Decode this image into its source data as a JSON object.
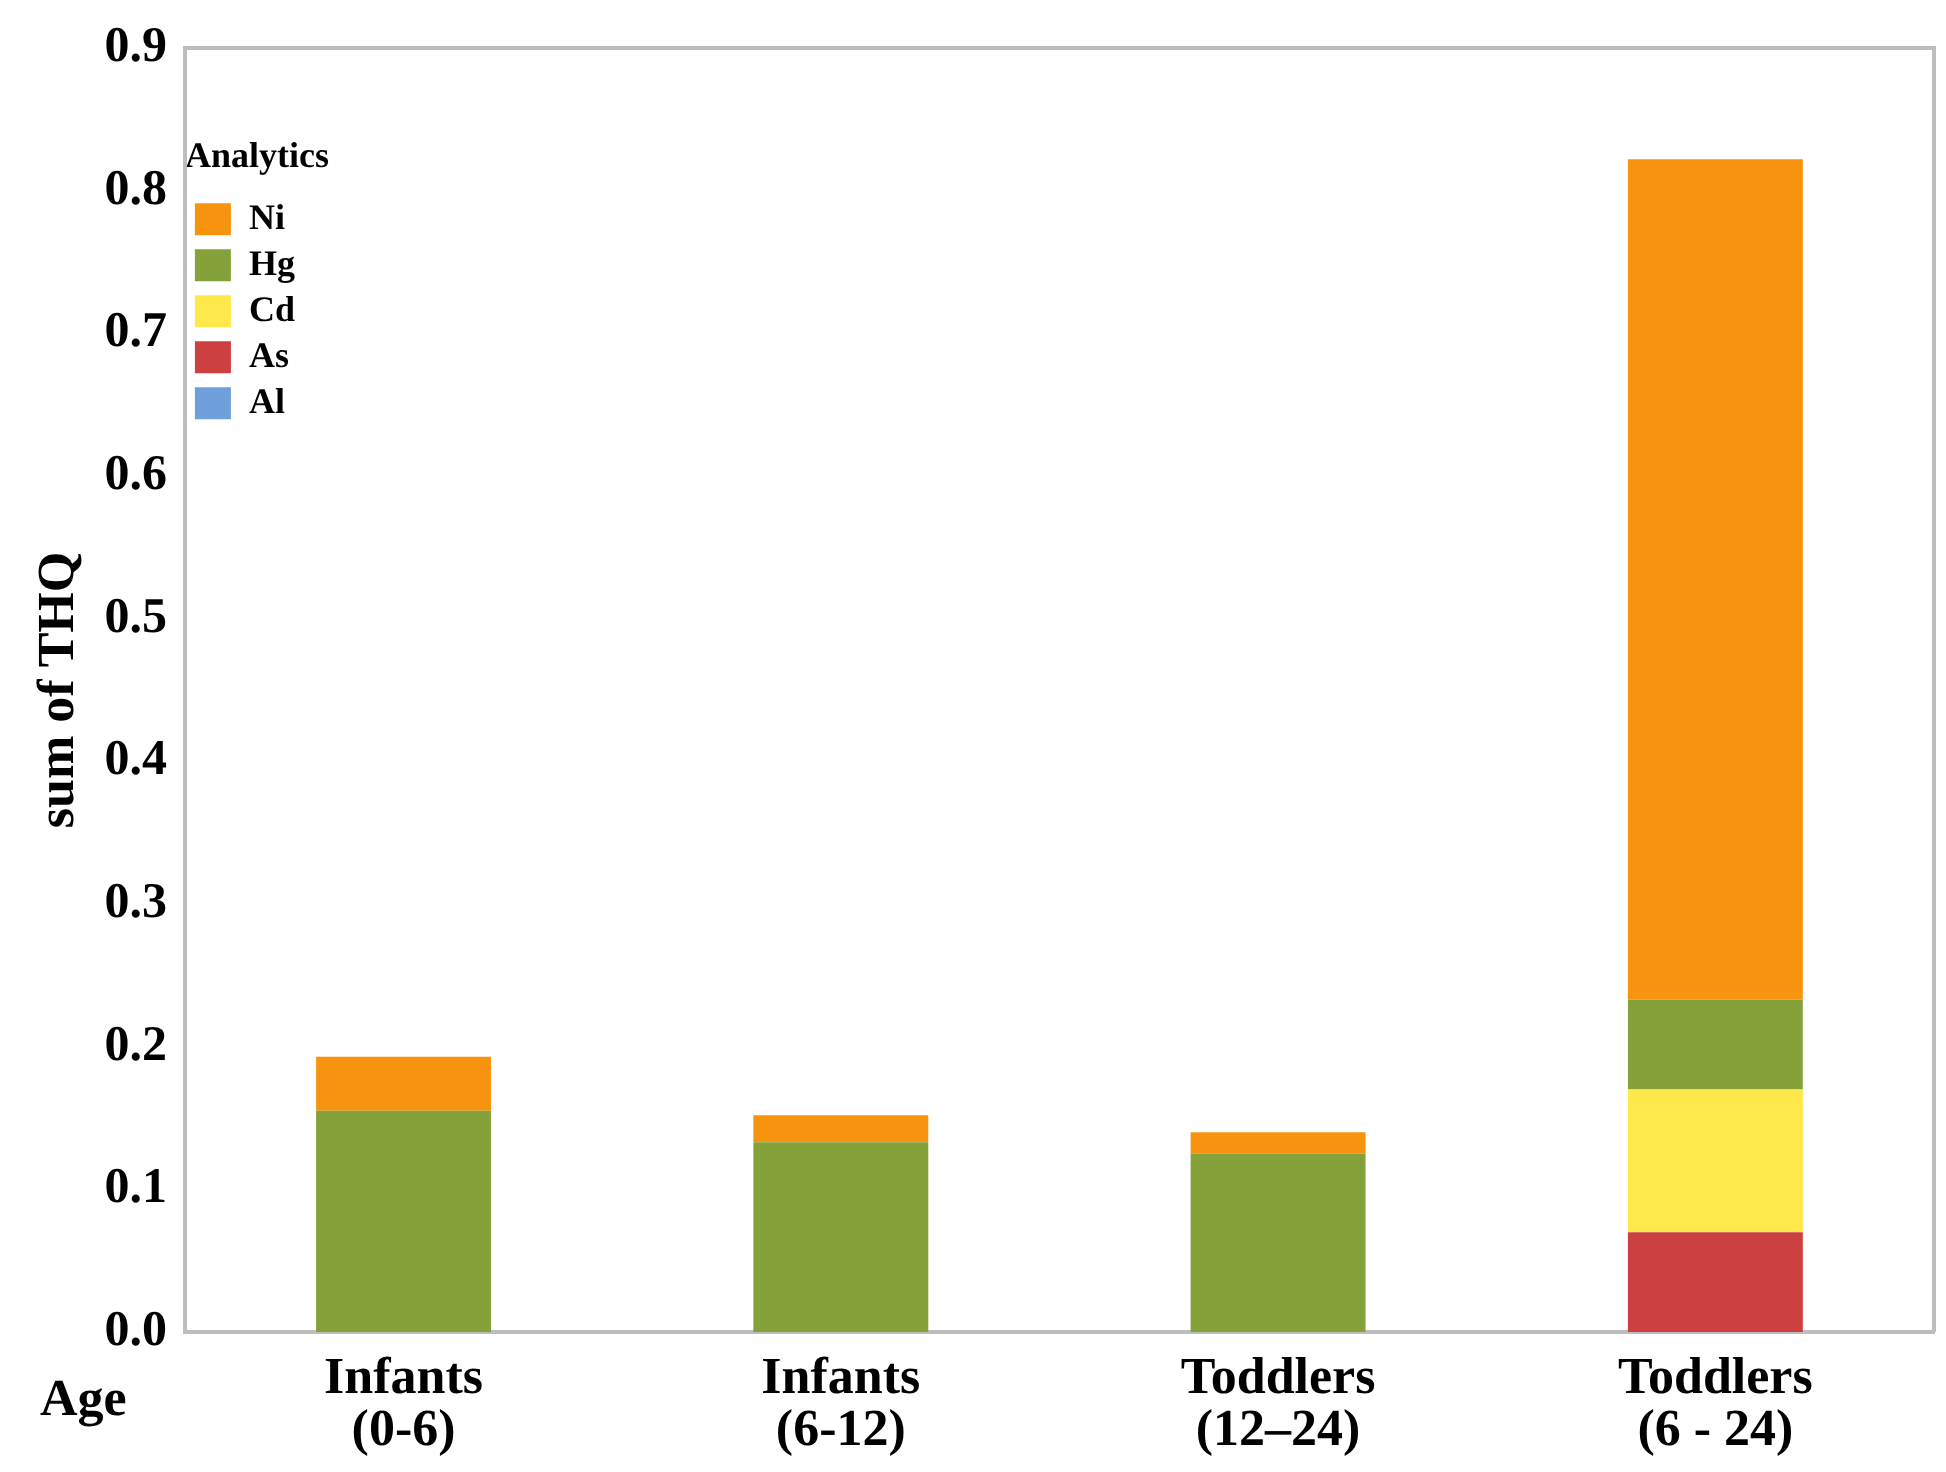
{
  "chart_data": {
    "type": "bar",
    "stacked": true,
    "ylabel": "sum of THQ",
    "xlabel": "Age",
    "legend_title": "Analytics",
    "legend": "top left",
    "categories": [
      "Infants\n(0-6)",
      "Infants\n(6-12)",
      "Toddlers\n(12–24)",
      "Toddlers\n(6 - 24)"
    ],
    "series": [
      {
        "name": "Al",
        "color": "#6fa0dc",
        "values": [
          0,
          0,
          0,
          0
        ]
      },
      {
        "name": "As",
        "color": "#cc4040",
        "values": [
          0,
          0,
          0,
          0.07
        ]
      },
      {
        "name": "Cd",
        "color": "#ffe84a",
        "values": [
          0,
          0,
          0,
          0.1
        ]
      },
      {
        "name": "Hg",
        "color": "#85a23a",
        "values": [
          0.155,
          0.133,
          0.125,
          0.063
        ]
      },
      {
        "name": "Ni",
        "color": "#f7940f",
        "values": [
          0.038,
          0.019,
          0.015,
          0.589
        ]
      }
    ],
    "ylim": [
      0,
      0.9
    ],
    "yticks": [
      {
        "value": 0,
        "label": "0.0"
      },
      0.1,
      0.2,
      0.3,
      0.4,
      0.5,
      0.6,
      0.7,
      0.8,
      0.9
    ],
    "grid": false
  }
}
